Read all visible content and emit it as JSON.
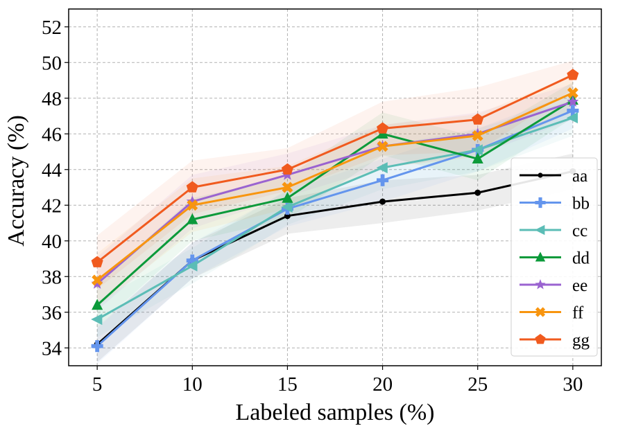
{
  "chart_data": {
    "type": "line",
    "title": "",
    "xlabel": "Labeled samples (%)",
    "ylabel": "Accuracy (%)",
    "x": [
      5,
      10,
      15,
      20,
      25,
      30
    ],
    "xlim": [
      3.5,
      31.5
    ],
    "ylim": [
      33,
      53
    ],
    "xticks": [
      "5",
      "10",
      "15",
      "20",
      "25",
      "30"
    ],
    "yticks": [
      "34",
      "36",
      "38",
      "40",
      "42",
      "44",
      "46",
      "48",
      "50",
      "52"
    ],
    "grid": true,
    "legend_position": "lower-right",
    "series": [
      {
        "name": "aa",
        "color": "#000000",
        "marker": "circle",
        "values": [
          34.2,
          38.9,
          41.4,
          42.2,
          42.7,
          43.9
        ],
        "band": [
          1.0,
          1.0,
          1.0,
          1.2,
          1.0,
          1.0
        ]
      },
      {
        "name": "bb",
        "color": "#6495ED",
        "marker": "plus",
        "values": [
          34.1,
          38.9,
          41.8,
          43.4,
          45.1,
          47.3
        ],
        "band": [
          1.0,
          1.0,
          1.0,
          1.2,
          1.2,
          1.0
        ]
      },
      {
        "name": "cc",
        "color": "#5BBDB6",
        "marker": "triangle-left",
        "values": [
          35.6,
          38.6,
          41.9,
          44.1,
          45.1,
          46.9
        ],
        "band": [
          1.0,
          1.0,
          1.0,
          1.2,
          1.2,
          1.0
        ]
      },
      {
        "name": "dd",
        "color": "#0B9A3A",
        "marker": "triangle-up",
        "values": [
          36.4,
          41.2,
          42.4,
          46.0,
          44.6,
          47.9
        ],
        "band": [
          1.2,
          1.2,
          1.2,
          1.2,
          1.2,
          1.0
        ]
      },
      {
        "name": "ee",
        "color": "#9A63D0",
        "marker": "star",
        "values": [
          37.6,
          42.2,
          43.7,
          45.3,
          46.0,
          47.8
        ],
        "band": [
          1.5,
          1.5,
          1.2,
          1.2,
          1.2,
          1.0
        ]
      },
      {
        "name": "ff",
        "color": "#F8950F",
        "marker": "x-filled",
        "values": [
          37.8,
          42.0,
          43.0,
          45.3,
          45.9,
          48.3
        ],
        "band": [
          1.5,
          1.5,
          1.2,
          1.2,
          1.2,
          1.0
        ]
      },
      {
        "name": "gg",
        "color": "#F05A1E",
        "marker": "pentagon",
        "values": [
          38.8,
          43.0,
          44.0,
          46.3,
          46.8,
          49.3
        ],
        "band": [
          1.5,
          1.5,
          1.2,
          1.5,
          1.8,
          0.8
        ]
      }
    ]
  }
}
